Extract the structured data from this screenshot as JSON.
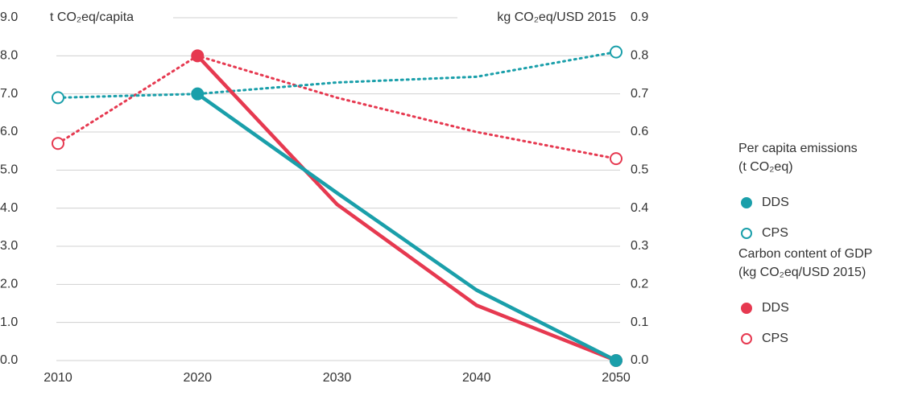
{
  "chart_data": {
    "type": "line",
    "y_label": "t CO₂eq/capita",
    "y2_label": "kg CO₂eq/USD 2015",
    "x": [
      2010,
      2020,
      2030,
      2040,
      2050
    ],
    "xlim": [
      2010,
      2050
    ],
    "xticks": [
      2010,
      2020,
      2030,
      2040,
      2050
    ],
    "ylim": [
      0,
      9
    ],
    "yticks": [
      {
        "value": 0,
        "label": "0.0"
      },
      {
        "value": 1,
        "label": "1.0"
      },
      {
        "value": 2,
        "label": "2.0"
      },
      {
        "value": 3,
        "label": "3.0"
      },
      {
        "value": 4,
        "label": "4.0"
      },
      {
        "value": 5,
        "label": "5.0"
      },
      {
        "value": 6,
        "label": "6.0"
      },
      {
        "value": 7,
        "label": "7.0"
      },
      {
        "value": 8,
        "label": "8.0"
      },
      {
        "value": 9,
        "label": "9.0"
      }
    ],
    "y2lim": [
      0,
      0.9
    ],
    "y2ticks": [
      {
        "value": 0,
        "label": "0.0"
      },
      0.1,
      0.2,
      0.3,
      0.4,
      0.5,
      0.6,
      0.7,
      0.8,
      0.9
    ],
    "grid": true,
    "legend_groups": [
      {
        "axis": "y",
        "title": [
          "Per capita emissions",
          "(t CO₂eq)"
        ]
      },
      {
        "axis": "y2",
        "title": [
          "Carbon content of GDP",
          "(kg CO₂eq/USD 2015)"
        ]
      }
    ],
    "series": [
      {
        "name": "DDS",
        "color": "#1a9faa",
        "style": "solid",
        "axis": "y",
        "values": [
          null,
          7.0,
          4.4,
          1.85,
          0.0
        ]
      },
      {
        "name": "CPS",
        "color": "#1a9faa",
        "style": "dotted",
        "axis": "y",
        "values": [
          6.9,
          7.0,
          7.3,
          7.45,
          8.1
        ]
      },
      {
        "name": "DDS",
        "color": "#e63950",
        "style": "solid",
        "axis": "y2",
        "values": [
          null,
          0.8,
          0.41,
          0.145,
          0.0
        ]
      },
      {
        "name": "CPS",
        "color": "#e63950",
        "style": "dotted",
        "axis": "y2",
        "values": [
          0.57,
          0.8,
          0.69,
          0.6,
          0.53
        ]
      }
    ]
  }
}
